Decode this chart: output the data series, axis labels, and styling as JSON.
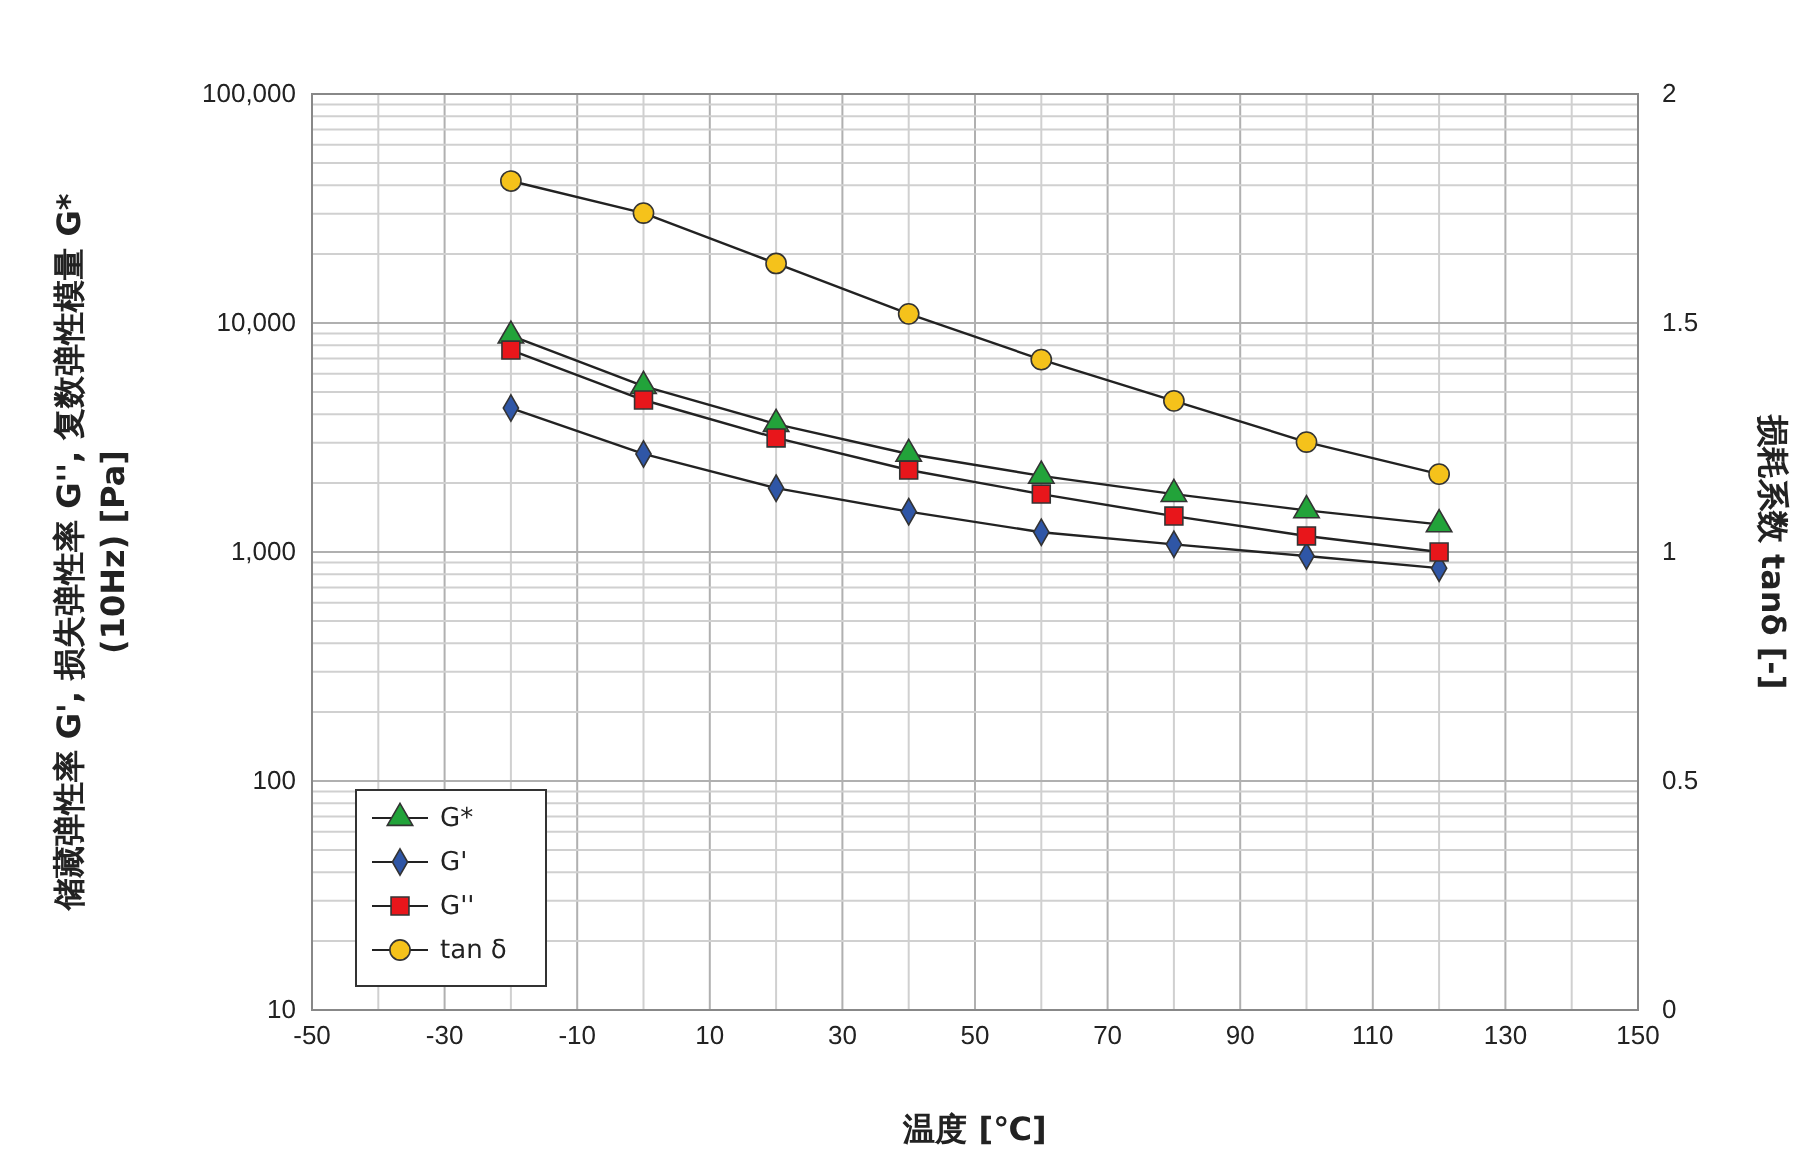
{
  "chart_data": {
    "type": "line",
    "xlabel": "温度 [℃]",
    "ylabel": "储藏弹性率 G', 损失弹性率 G'', 复数弹性模量 G*\n(10Hz) [Pa]",
    "y2label": "损耗系数 tanδ [-]",
    "x": [
      -20,
      0,
      20,
      40,
      60,
      80,
      100,
      120
    ],
    "series": [
      {
        "name": "G*",
        "color": "#22a33a",
        "marker": "triangle",
        "values": [
          8800,
          5300,
          3620,
          2680,
          2150,
          1790,
          1520,
          1320
        ]
      },
      {
        "name": "G'",
        "color": "#2f56a6",
        "marker": "diamond",
        "values": [
          4250,
          2680,
          1900,
          1500,
          1220,
          1080,
          960,
          850
        ]
      },
      {
        "name": "G''",
        "color": "#e8161b",
        "marker": "square",
        "values": [
          7620,
          4610,
          3150,
          2280,
          1790,
          1435,
          1175,
          1000
        ]
      },
      {
        "name": "tan δ",
        "color": "#f5c21b",
        "marker": "circle",
        "axis": "y2",
        "values": [
          1.81,
          1.74,
          1.63,
          1.52,
          1.42,
          1.33,
          1.24,
          1.17
        ]
      }
    ],
    "log": "y",
    "xlim": [
      -50,
      150
    ],
    "xticks": [
      -50,
      {
        "value": -40,
        "label": null
      },
      -30,
      {
        "value": -20,
        "label": null
      },
      -10,
      {
        "value": 0,
        "label": null
      },
      10,
      {
        "value": 20,
        "label": null
      },
      30,
      {
        "value": 40,
        "label": null
      },
      50,
      {
        "value": 60,
        "label": null
      },
      70,
      {
        "value": 80,
        "label": null
      },
      90,
      {
        "value": 100,
        "label": null
      },
      110,
      {
        "value": 120,
        "label": null
      },
      130,
      {
        "value": 140,
        "label": null
      },
      150
    ],
    "ylim": [
      10,
      100000
    ],
    "yticks": [
      10,
      {
        "value": 20,
        "label": null
      },
      {
        "value": 30,
        "label": null
      },
      {
        "value": 40,
        "label": null
      },
      {
        "value": 50,
        "label": null
      },
      {
        "value": 60,
        "label": null
      },
      {
        "value": 70,
        "label": null
      },
      {
        "value": 80,
        "label": null
      },
      {
        "value": 90,
        "label": null
      },
      100,
      {
        "value": 200,
        "label": null
      },
      {
        "value": 300,
        "label": null
      },
      {
        "value": 400,
        "label": null
      },
      {
        "value": 500,
        "label": null
      },
      {
        "value": 600,
        "label": null
      },
      {
        "value": 700,
        "label": null
      },
      {
        "value": 800,
        "label": null
      },
      {
        "value": 900,
        "label": null
      },
      {
        "value": 1000,
        "label": "1,000"
      },
      {
        "value": 2000,
        "label": null
      },
      {
        "value": 3000,
        "label": null
      },
      {
        "value": 4000,
        "label": null
      },
      {
        "value": 5000,
        "label": null
      },
      {
        "value": 6000,
        "label": null
      },
      {
        "value": 7000,
        "label": null
      },
      {
        "value": 8000,
        "label": null
      },
      {
        "value": 9000,
        "label": null
      },
      {
        "value": 10000,
        "label": "10,000"
      },
      {
        "value": 20000,
        "label": null
      },
      {
        "value": 30000,
        "label": null
      },
      {
        "value": 40000,
        "label": null
      },
      {
        "value": 50000,
        "label": null
      },
      {
        "value": 60000,
        "label": null
      },
      {
        "value": 70000,
        "label": null
      },
      {
        "value": 80000,
        "label": null
      },
      {
        "value": 90000,
        "label": null
      },
      {
        "value": 100000,
        "label": "100,000"
      }
    ],
    "y2lim": [
      0,
      2
    ],
    "y2ticks": [
      0,
      0.5,
      1,
      1.5,
      2
    ],
    "grid": true,
    "legend": "bottom left",
    "line_style": "solid"
  }
}
